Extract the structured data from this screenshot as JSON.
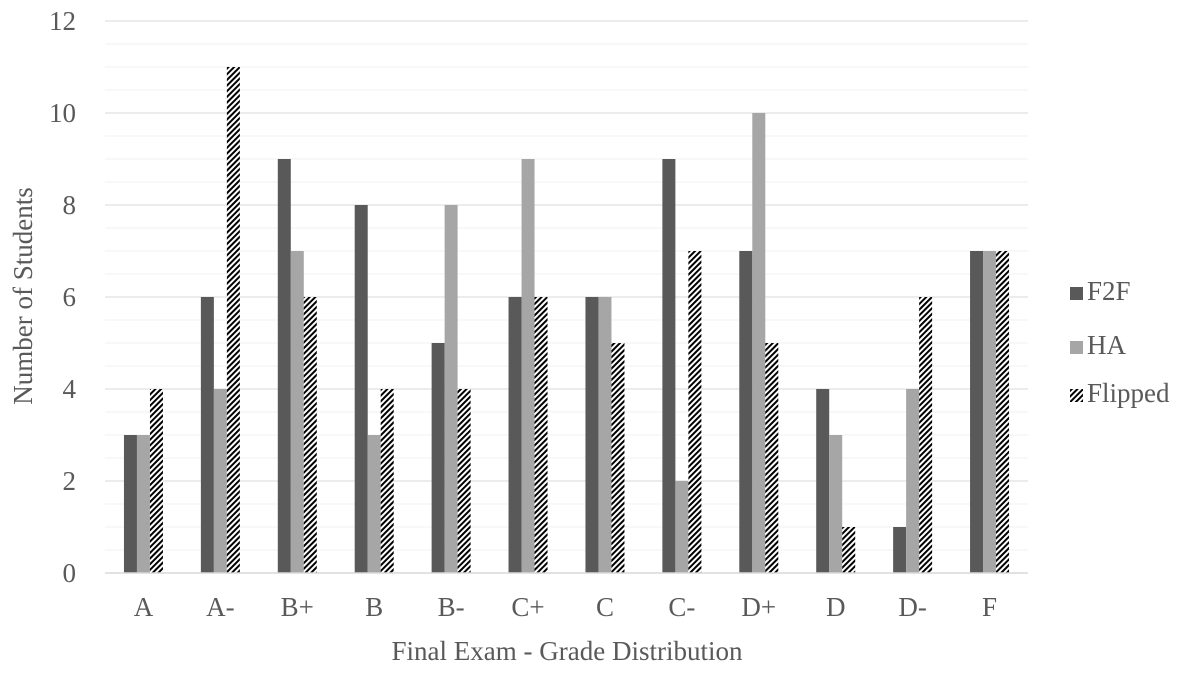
{
  "chart_data": {
    "type": "bar",
    "title": "",
    "xlabel": "Final Exam - Grade Distribution",
    "ylabel": "Number of Students",
    "ylim": [
      0,
      12
    ],
    "y_ticks": [
      "0",
      "2",
      "4",
      "6",
      "8",
      "10",
      "12"
    ],
    "grid": true,
    "legend_position": "right",
    "categories": [
      "A",
      "A-",
      "B+",
      "B",
      "B-",
      "C+",
      "C",
      "C-",
      "D+",
      "D",
      "D-",
      "F"
    ],
    "series": [
      {
        "name": "F2F",
        "color": "#595959",
        "pattern": "solid",
        "values": [
          3,
          6,
          9,
          8,
          5,
          6,
          6,
          9,
          7,
          4,
          1,
          7
        ]
      },
      {
        "name": "HA",
        "color": "#a6a6a6",
        "pattern": "solid",
        "values": [
          3,
          4,
          7,
          3,
          8,
          9,
          6,
          2,
          10,
          3,
          4,
          7
        ]
      },
      {
        "name": "Flipped",
        "color": "#000000",
        "pattern": "diagonal-stripes",
        "values": [
          4,
          11,
          6,
          4,
          4,
          6,
          5,
          7,
          5,
          1,
          6,
          7
        ]
      }
    ]
  }
}
